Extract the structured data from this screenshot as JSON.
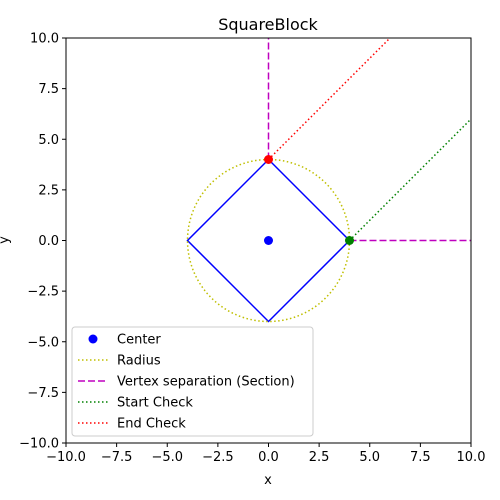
{
  "chart_data": {
    "type": "line",
    "title": "SquareBlock",
    "xlabel": "x",
    "ylabel": "y",
    "xlim": [
      -10,
      10
    ],
    "ylim": [
      -10,
      10
    ],
    "xticks": [
      -10,
      -7.5,
      -5,
      -2.5,
      0,
      2.5,
      5,
      7.5,
      10
    ],
    "yticks": [
      -10,
      -7.5,
      -5,
      -2.5,
      0,
      2.5,
      5,
      7.5,
      10
    ],
    "xtick_labels": [
      "−10.0",
      "−7.5",
      "−5.0",
      "−2.5",
      "0.0",
      "2.5",
      "5.0",
      "7.5",
      "10.0"
    ],
    "ytick_labels": [
      "−10.0",
      "−7.5",
      "−5.0",
      "−2.5",
      "0.0",
      "2.5",
      "5.0",
      "7.5",
      "10.0"
    ],
    "grid": false,
    "legend_position": "lower-left",
    "square": {
      "color": "#0000ff",
      "x": [
        4,
        0,
        -4,
        0,
        4
      ],
      "y": [
        0,
        4,
        0,
        -4,
        0
      ]
    },
    "series": [
      {
        "name": "Center",
        "kind": "marker",
        "color": "#0000ff",
        "x": [
          0
        ],
        "y": [
          0
        ]
      },
      {
        "name": "Radius",
        "kind": "circle",
        "color": "#bfbf00",
        "dash": "dotted",
        "center": [
          0,
          0
        ],
        "radius": 4
      },
      {
        "name": "Vertex separation (Section)",
        "kind": "line",
        "color": "#bf00bf",
        "dash": "dashed",
        "segments": [
          {
            "x": [
              0,
              0
            ],
            "y": [
              4,
              10
            ]
          },
          {
            "x": [
              4,
              10
            ],
            "y": [
              0,
              0
            ]
          }
        ]
      },
      {
        "name": "Start Check",
        "kind": "line",
        "color": "#008000",
        "dash": "dotted",
        "x": [
          4,
          10
        ],
        "y": [
          0,
          6
        ],
        "marker": {
          "x": 4,
          "y": 0
        }
      },
      {
        "name": "End Check",
        "kind": "line",
        "color": "#ff0000",
        "dash": "dotted",
        "x": [
          0,
          6
        ],
        "y": [
          4,
          10
        ],
        "marker": {
          "x": 0,
          "y": 4
        }
      }
    ]
  }
}
